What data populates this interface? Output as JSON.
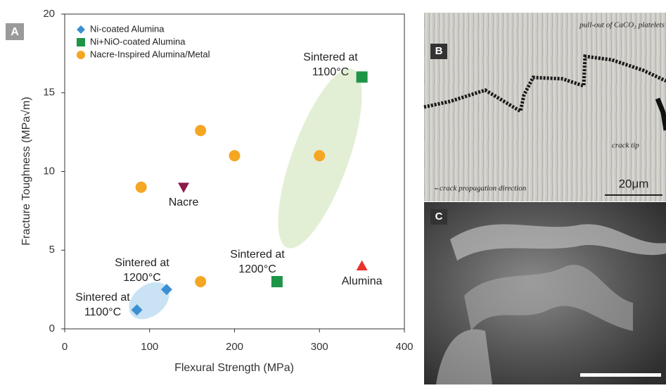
{
  "chart_data": {
    "type": "scatter",
    "panel_label": "A",
    "x_label": "Flexural Strength (MPa)",
    "y_label": "Fracture Toughness (MPa√m)",
    "xlim": [
      0,
      400
    ],
    "ylim": [
      0,
      20
    ],
    "xticks": [
      0,
      100,
      200,
      300,
      400
    ],
    "yticks": [
      0,
      5,
      10,
      15,
      20
    ],
    "series": [
      {
        "name": "Ni-coated Alumina",
        "color": "#3d8fd1",
        "marker": "diamond",
        "x": [
          85,
          120
        ],
        "values": [
          1.2,
          2.5
        ]
      },
      {
        "name": "Ni+NiO-coated Alumina",
        "color": "#1e9447",
        "marker": "square",
        "x": [
          250,
          350
        ],
        "values": [
          3,
          16
        ]
      },
      {
        "name": "Nacre-Inspired Alumina/Metal",
        "color": "#f5a623",
        "marker": "circle",
        "x": [
          90,
          160,
          200,
          300,
          160
        ],
        "values": [
          9,
          12.6,
          11,
          11,
          3
        ]
      }
    ],
    "reference_points": [
      {
        "name": "Nacre",
        "color": "#8b1a4a",
        "marker": "triangle-down",
        "x": 140,
        "y": 9
      },
      {
        "name": "Alumina",
        "color": "#e8322b",
        "marker": "triangle",
        "x": 350,
        "y": 4
      }
    ],
    "annotations": [
      {
        "lines": [
          "Sintered at",
          "1100°C"
        ]
      },
      {
        "lines": [
          "Sintered at",
          "1200°C"
        ]
      },
      {
        "lines": [
          "Sintered at",
          "1200°C"
        ]
      },
      {
        "lines": [
          "Sintered at",
          "1100°C"
        ]
      }
    ]
  },
  "panels": [
    {
      "label": "B",
      "annotations": [
        "pull-out of CaCO₃ platelets",
        "crack tip",
        "crack propagation direction"
      ],
      "scale_bar": "20μm"
    },
    {
      "label": "C"
    }
  ]
}
